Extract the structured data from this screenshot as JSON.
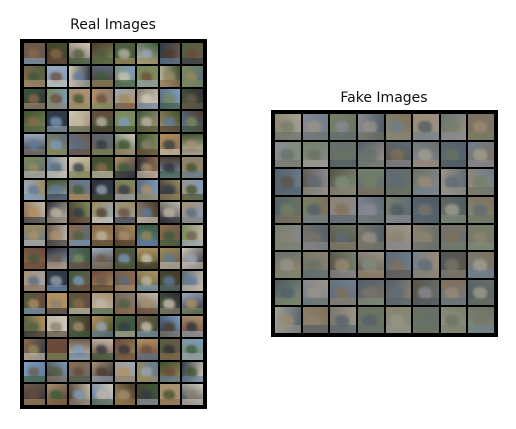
{
  "figure": {
    "panels": [
      {
        "id": "real",
        "title": "Real Images",
        "rows": 16,
        "cols": 8,
        "palette": [
          "#6b5a4a",
          "#8a7f70",
          "#3f4f2c",
          "#9aa8b8",
          "#5a6a7a",
          "#b09060",
          "#2f3a46",
          "#7a8a5a",
          "#c0b8a8",
          "#4a3a2a",
          "#8c6a4a",
          "#5e7a9a",
          "#a89070",
          "#3a5a3a",
          "#d0c8b8",
          "#6a4a3a",
          "#2e2e38",
          "#9a8a5a",
          "#7c9cc0",
          "#4e5e3e"
        ]
      },
      {
        "id": "fake",
        "title": "Fake Images",
        "rows": 8,
        "cols": 8,
        "palette": [
          "#7a7468",
          "#5e6a74",
          "#8c8270",
          "#6a7260",
          "#9a9488",
          "#4e5a62",
          "#807058",
          "#6e7e8c",
          "#a4a090",
          "#5a5448",
          "#748068",
          "#8a8a94",
          "#66706a",
          "#9c8a74",
          "#52606a",
          "#7e8e7a"
        ]
      }
    ]
  }
}
